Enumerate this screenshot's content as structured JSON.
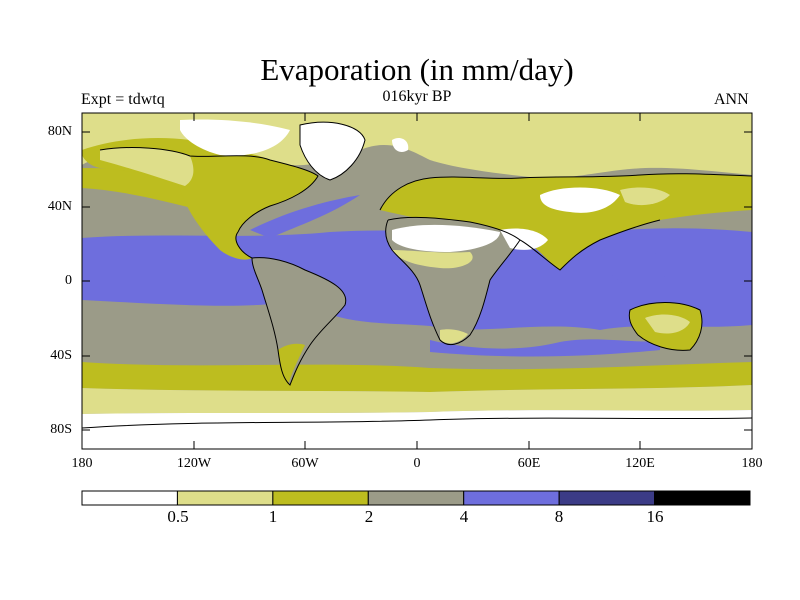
{
  "title": "Evaporation (in mm/day)",
  "subtitle": "016kyr BP",
  "left_label": "Expt = tdwtq",
  "right_label": "ANN",
  "lat_ticks": [
    "80N",
    "40N",
    "0",
    "40S",
    "80S"
  ],
  "lon_ticks": [
    "180",
    "120W",
    "60W",
    "0",
    "60E",
    "120E",
    "180"
  ],
  "colorbar": {
    "labels": [
      "0.5",
      "1",
      "2",
      "4",
      "8",
      "16"
    ],
    "colors": [
      "#ffffff",
      "#dede8a",
      "#bdbd1f",
      "#9b9b88",
      "#6e6edd",
      "#3b3b86",
      "#000000"
    ]
  },
  "colors": {
    "ocean_tropics": "#6e6edd",
    "ocean_midlat": "#9b9b88",
    "band_1_2": "#bdbd1f",
    "band_05_1": "#dede8a",
    "low": "#ffffff",
    "coast": "#000000"
  }
}
